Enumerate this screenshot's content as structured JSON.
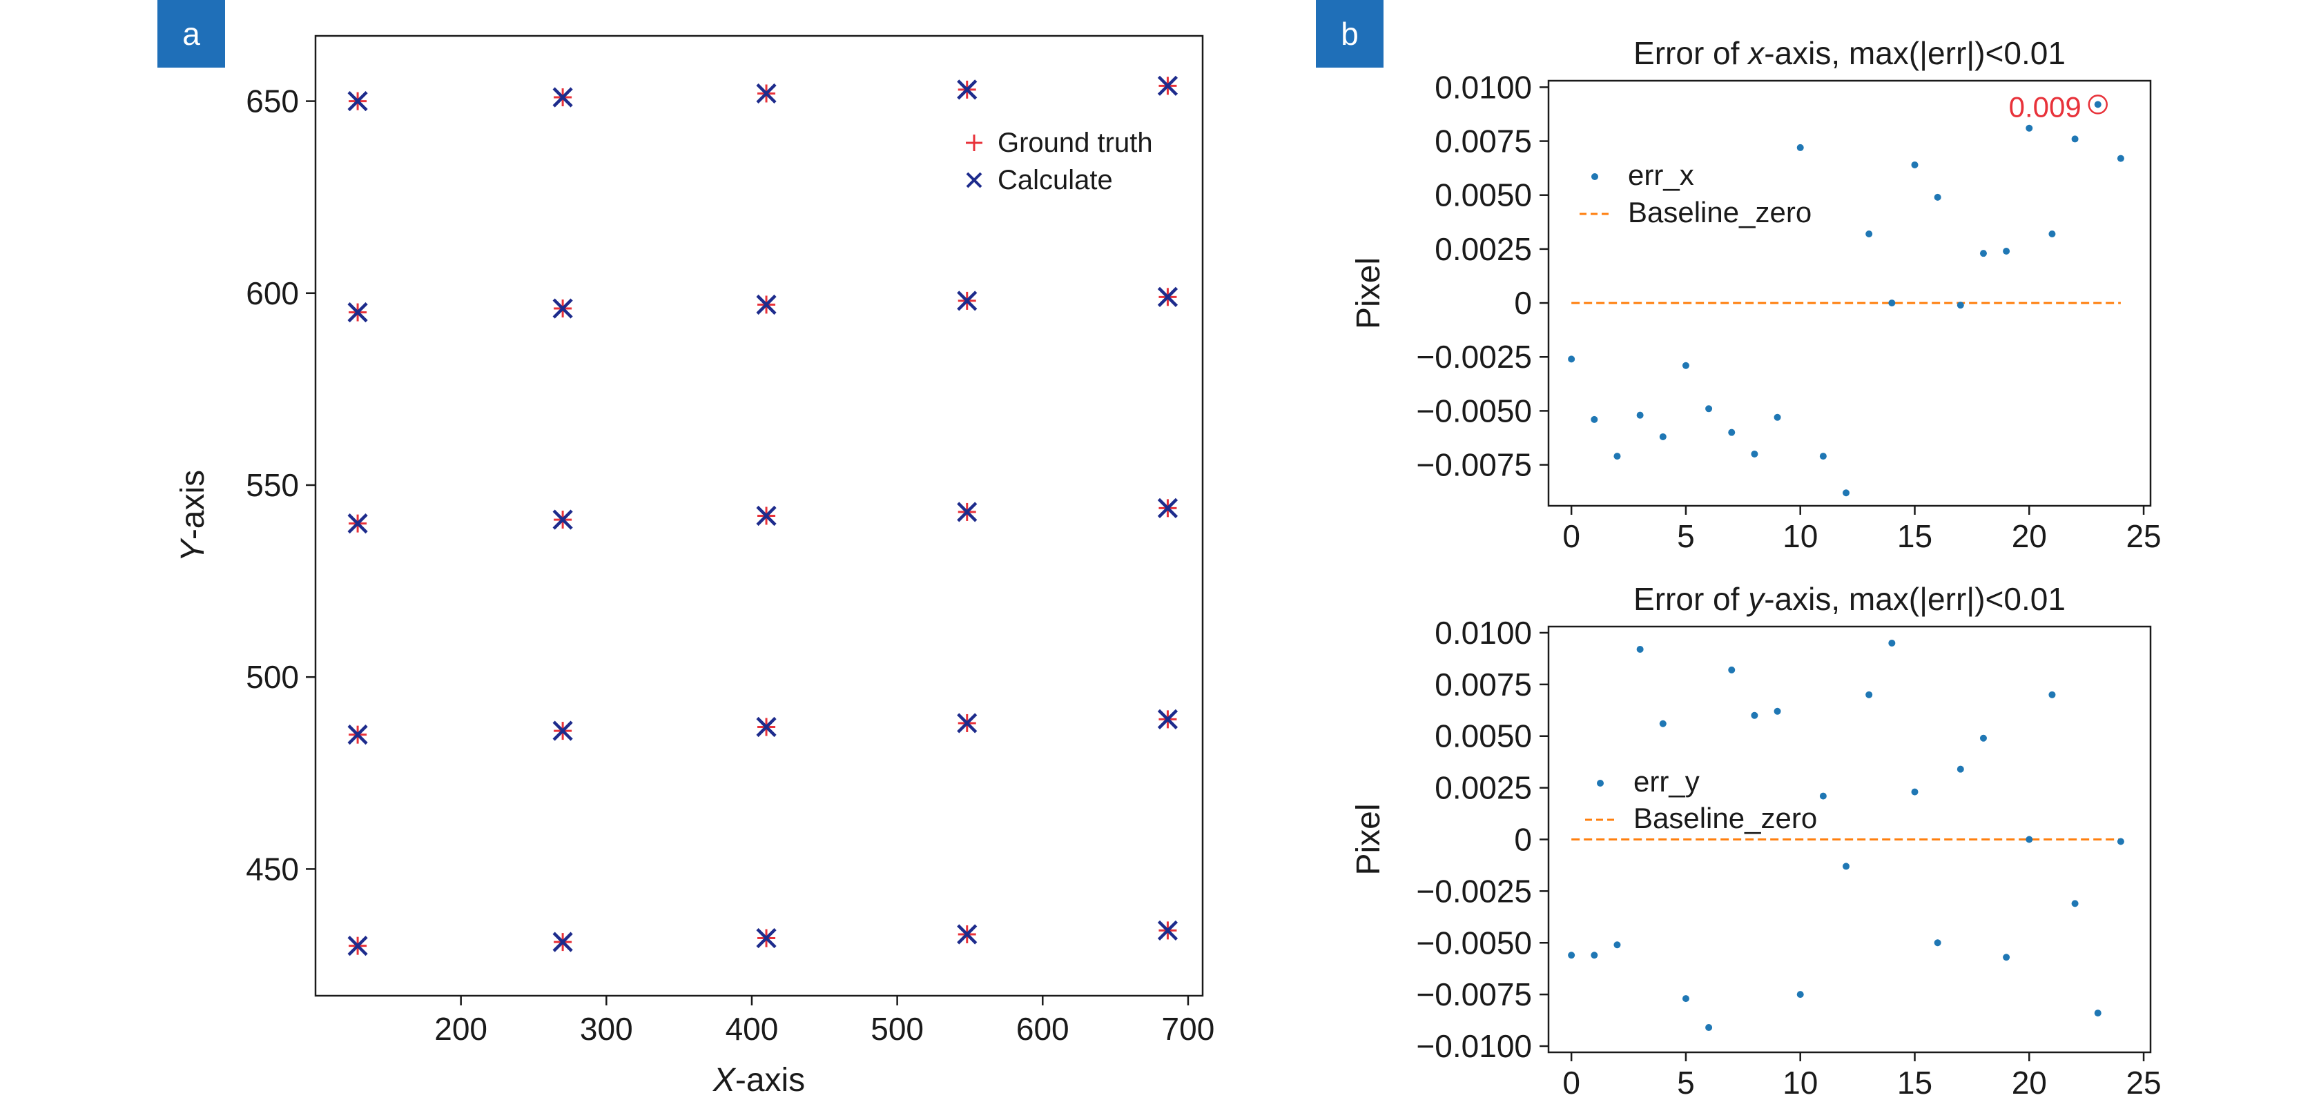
{
  "panels": {
    "a_label": "a",
    "b_label": "b"
  },
  "colors": {
    "ground_truth": "#e8323a",
    "calculate": "#1d2b8c",
    "err_points": "#1f77b4",
    "baseline": "#ff7f0e",
    "annotation": "#e8323a",
    "panel_label_bg": "#1f6fb8"
  },
  "chart_data": [
    {
      "id": "panel-a",
      "type": "scatter",
      "title": "",
      "xlabel_italic": "X",
      "xlabel_rest": "-axis",
      "ylabel_italic": "Y",
      "ylabel_rest": "-axis",
      "xlim": [
        100,
        710
      ],
      "ylim": [
        417,
        667
      ],
      "xticks": [
        200,
        300,
        400,
        500,
        600,
        700
      ],
      "yticks": [
        450,
        500,
        550,
        600,
        650
      ],
      "legend": {
        "placement": "top-right",
        "entries": [
          {
            "marker": "+",
            "label": "Ground truth"
          },
          {
            "marker": "x",
            "label": "Calculate"
          }
        ]
      },
      "series": [
        {
          "name": "Ground truth",
          "marker": "+",
          "points": [
            [
              129,
              430
            ],
            [
              270,
              431
            ],
            [
              410,
              432
            ],
            [
              548,
              433
            ],
            [
              686,
              434
            ],
            [
              129,
              485
            ],
            [
              270,
              486
            ],
            [
              410,
              487
            ],
            [
              548,
              488
            ],
            [
              686,
              489
            ],
            [
              129,
              540
            ],
            [
              270,
              541
            ],
            [
              410,
              542
            ],
            [
              548,
              543
            ],
            [
              686,
              544
            ],
            [
              129,
              595
            ],
            [
              270,
              596
            ],
            [
              410,
              597
            ],
            [
              548,
              598
            ],
            [
              686,
              599
            ],
            [
              129,
              650
            ],
            [
              270,
              651
            ],
            [
              410,
              652
            ],
            [
              548,
              653
            ],
            [
              686,
              654
            ]
          ]
        },
        {
          "name": "Calculate",
          "marker": "x",
          "points": [
            [
              129,
              430
            ],
            [
              270,
              431
            ],
            [
              410,
              432
            ],
            [
              548,
              433
            ],
            [
              686,
              434
            ],
            [
              129,
              485
            ],
            [
              270,
              486
            ],
            [
              410,
              487
            ],
            [
              548,
              488
            ],
            [
              686,
              489
            ],
            [
              129,
              540
            ],
            [
              270,
              541
            ],
            [
              410,
              542
            ],
            [
              548,
              543
            ],
            [
              686,
              544
            ],
            [
              129,
              595
            ],
            [
              270,
              596
            ],
            [
              410,
              597
            ],
            [
              548,
              598
            ],
            [
              686,
              599
            ],
            [
              129,
              650
            ],
            [
              270,
              651
            ],
            [
              410,
              652
            ],
            [
              548,
              653
            ],
            [
              686,
              654
            ]
          ]
        }
      ]
    },
    {
      "id": "panel-b-top",
      "type": "scatter",
      "title_pre": "Error of ",
      "title_italic": "x",
      "title_post": "-axis, max(|err|)<0.01",
      "ylabel": "Pixel",
      "xlim": [
        -1,
        25.3
      ],
      "ylim": [
        -0.0094,
        0.0103
      ],
      "xticks": [
        0,
        5,
        10,
        15,
        20,
        25
      ],
      "yticks": [
        0.01,
        0.0075,
        0.005,
        0.0025,
        0,
        -0.0025,
        -0.005,
        -0.0075
      ],
      "ytick_labels": [
        "0.0100",
        "0.0075",
        "0.0050",
        "0.0025",
        "0",
        "−0.0025",
        "−0.0050",
        "−0.0075"
      ],
      "legend": {
        "placement": "upper-left",
        "entries": [
          {
            "marker": "point",
            "label": "err_x"
          },
          {
            "marker": "dashed-line",
            "label": "Baseline_zero"
          }
        ]
      },
      "annotation": {
        "text": "0.009",
        "x": 23,
        "y": 0.0092
      },
      "series": [
        {
          "name": "err_x",
          "x": [
            0,
            1,
            2,
            3,
            4,
            5,
            6,
            7,
            8,
            9,
            10,
            11,
            12,
            13,
            14,
            15,
            16,
            17,
            18,
            19,
            20,
            21,
            22,
            23,
            24
          ],
          "y": [
            -0.0026,
            -0.0054,
            -0.0071,
            -0.0052,
            -0.0062,
            -0.0029,
            -0.0049,
            -0.006,
            -0.007,
            -0.0053,
            0.0072,
            -0.0071,
            -0.0088,
            0.0032,
            0.0,
            0.0064,
            0.0049,
            -0.0001,
            0.0023,
            0.0024,
            0.0081,
            0.0032,
            0.0076,
            0.0092,
            0.0067
          ]
        },
        {
          "name": "Baseline_zero",
          "x": [
            0,
            24
          ],
          "y": [
            0,
            0
          ]
        }
      ]
    },
    {
      "id": "panel-b-bottom",
      "type": "scatter",
      "title_pre": "Error of ",
      "title_italic": "y",
      "title_post": "-axis, max(|err|)<0.01",
      "ylabel": "Pixel",
      "xlim": [
        -1,
        25.3
      ],
      "ylim": [
        -0.0103,
        0.0103
      ],
      "xticks": [
        0,
        5,
        10,
        15,
        20,
        25
      ],
      "yticks": [
        0.01,
        0.0075,
        0.005,
        0.0025,
        0,
        -0.0025,
        -0.005,
        -0.0075,
        -0.01
      ],
      "ytick_labels": [
        "0.0100",
        "0.0075",
        "0.0050",
        "0.0025",
        "0",
        "−0.0025",
        "−0.0050",
        "−0.0075",
        "−0.0100"
      ],
      "legend": {
        "placement": "middle-left",
        "entries": [
          {
            "marker": "point",
            "label": "err_y"
          },
          {
            "marker": "dashed-line",
            "label": "Baseline_zero"
          }
        ]
      },
      "series": [
        {
          "name": "err_y",
          "x": [
            0,
            1,
            2,
            3,
            4,
            5,
            6,
            7,
            8,
            9,
            10,
            11,
            12,
            13,
            14,
            15,
            16,
            17,
            18,
            19,
            20,
            21,
            22,
            23,
            24
          ],
          "y": [
            -0.0056,
            -0.0056,
            -0.0051,
            0.0092,
            0.0056,
            -0.0077,
            -0.0091,
            0.0082,
            0.006,
            0.0062,
            -0.0075,
            0.0021,
            -0.0013,
            0.007,
            0.0095,
            0.0023,
            -0.005,
            0.0034,
            0.0049,
            -0.0057,
            0.0,
            0.007,
            -0.0031,
            -0.0084,
            -0.0001
          ]
        },
        {
          "name": "Baseline_zero",
          "x": [
            0,
            24
          ],
          "y": [
            0,
            0
          ]
        }
      ]
    }
  ]
}
